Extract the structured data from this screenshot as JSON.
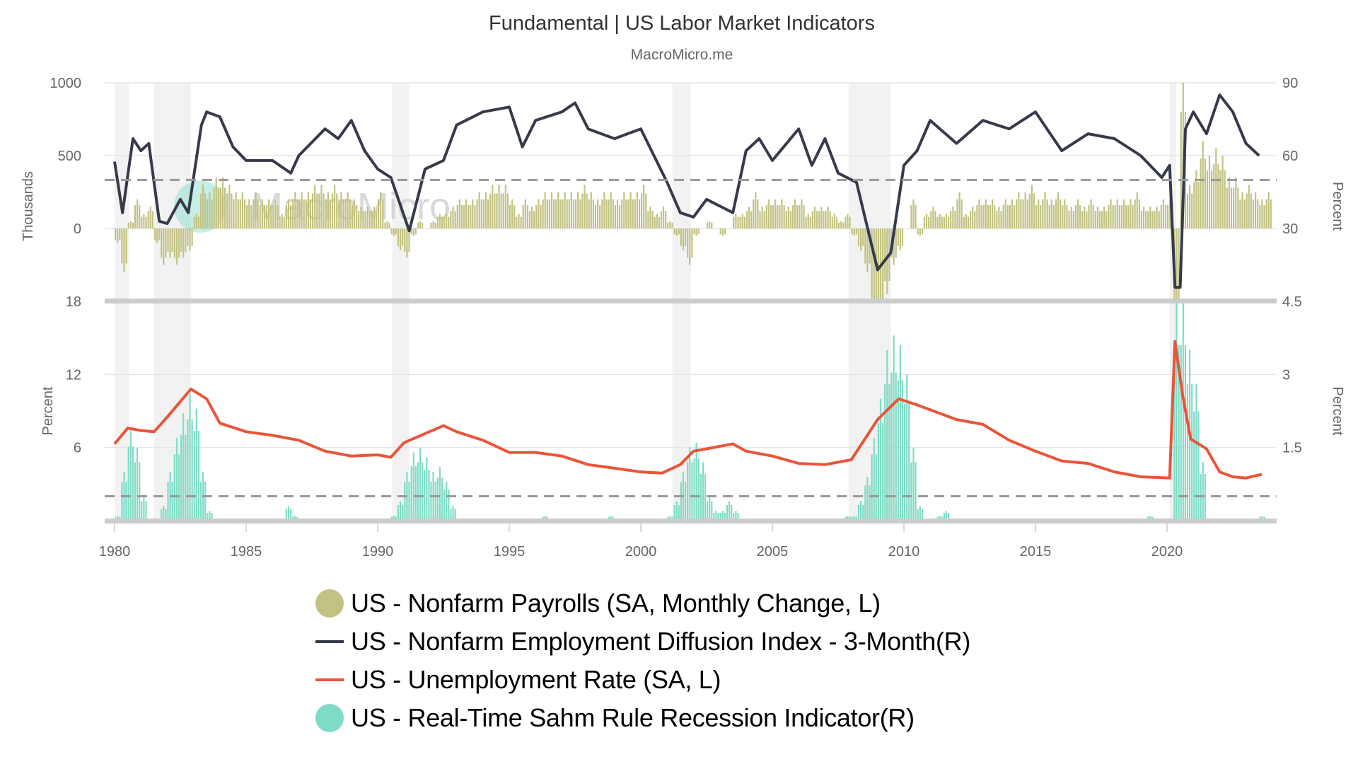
{
  "title": "Fundamental | US Labor Market Indicators",
  "subtitle": "MacroMicro.me",
  "watermark": "MacroMicro",
  "chart_data": {
    "type": "combo",
    "x_ticks": [
      "1980",
      "1985",
      "1990",
      "1995",
      "2000",
      "2005",
      "2010",
      "2015",
      "2020"
    ],
    "xlim": [
      1980,
      2023.8
    ],
    "grid": true,
    "legend_position": "bottom",
    "recessions": [
      [
        1980.0,
        1980.55
      ],
      [
        1981.5,
        1982.9
      ],
      [
        1990.55,
        1991.2
      ],
      [
        2001.2,
        2001.9
      ],
      [
        2007.9,
        2009.5
      ],
      [
        2020.1,
        2020.35
      ]
    ],
    "panels": [
      {
        "name": "upper",
        "left_axis": {
          "label": "Thousands",
          "ticks": [
            "1000",
            "500",
            "0"
          ],
          "ylim": [
            -500,
            1000
          ]
        },
        "right_axis": {
          "label": "Percent",
          "ticks": [
            "90",
            "60",
            "30"
          ],
          "ylim": [
            0,
            90
          ]
        },
        "reference_line_right": 50
      },
      {
        "name": "lower",
        "left_axis": {
          "label": "Percent",
          "ticks": [
            "18",
            "12",
            "6"
          ],
          "ylim": [
            0,
            18
          ]
        },
        "right_axis": {
          "label": "Percent",
          "ticks": [
            "4.5",
            "3",
            "1.5"
          ],
          "ylim": [
            0,
            4.5
          ]
        },
        "reference_line_right": 0.5
      }
    ],
    "series": [
      {
        "name": "US - Nonfarm Payrolls (SA, Monthly Change, L)",
        "type": "bar",
        "panel": "upper",
        "axis": "left",
        "color": "#c2c283",
        "x_start": 1980,
        "x_step": 0.25,
        "values": [
          -100,
          -300,
          50,
          200,
          100,
          150,
          -100,
          -250,
          -200,
          -250,
          -200,
          -150,
          100,
          300,
          250,
          350,
          350,
          300,
          250,
          250,
          200,
          250,
          200,
          200,
          200,
          100,
          200,
          250,
          250,
          250,
          300,
          300,
          250,
          300,
          250,
          250,
          200,
          150,
          150,
          150,
          250,
          50,
          -50,
          -150,
          -200,
          -50,
          50,
          0,
          50,
          100,
          100,
          150,
          200,
          200,
          200,
          250,
          250,
          300,
          300,
          300,
          200,
          100,
          200,
          150,
          200,
          250,
          250,
          250,
          250,
          250,
          250,
          300,
          250,
          200,
          250,
          250,
          200,
          250,
          250,
          250,
          300,
          150,
          100,
          150,
          50,
          -50,
          -150,
          -250,
          -50,
          0,
          50,
          0,
          -50,
          0,
          100,
          100,
          150,
          250,
          150,
          200,
          200,
          200,
          150,
          200,
          200,
          100,
          150,
          150,
          150,
          100,
          50,
          100,
          -50,
          -150,
          -300,
          -600,
          -700,
          -450,
          -250,
          -150,
          0,
          200,
          -50,
          100,
          150,
          100,
          100,
          150,
          250,
          100,
          150,
          200,
          200,
          200,
          150,
          200,
          200,
          250,
          250,
          300,
          200,
          250,
          200,
          250,
          200,
          150,
          200,
          150,
          200,
          150,
          150,
          200,
          200,
          200,
          200,
          250,
          150,
          150,
          150,
          200,
          200,
          -900,
          1000,
          300,
          400,
          600,
          500,
          550,
          500,
          350,
          350,
          250,
          300,
          250,
          200,
          250
        ]
      },
      {
        "name": "US - Nonfarm Employment Diffusion Index - 3-Month(R)",
        "type": "line",
        "panel": "upper",
        "axis": "right",
        "color": "#363a4a",
        "points": [
          [
            1980.0,
            57.5
          ],
          [
            1980.3,
            36.5
          ],
          [
            1980.7,
            67
          ],
          [
            1981.0,
            62
          ],
          [
            1981.3,
            65
          ],
          [
            1981.7,
            33
          ],
          [
            1982.0,
            32
          ],
          [
            1982.5,
            42
          ],
          [
            1982.8,
            36.5
          ],
          [
            1983.3,
            72.6
          ],
          [
            1983.5,
            78
          ],
          [
            1984.0,
            76
          ],
          [
            1984.5,
            63.6
          ],
          [
            1985.0,
            58
          ],
          [
            1986.0,
            58
          ],
          [
            1986.7,
            52.8
          ],
          [
            1987.0,
            60
          ],
          [
            1988.0,
            71
          ],
          [
            1988.5,
            67
          ],
          [
            1989.0,
            74.5
          ],
          [
            1989.5,
            62
          ],
          [
            1990.0,
            54.5
          ],
          [
            1990.5,
            51
          ],
          [
            1991.2,
            29
          ],
          [
            1991.8,
            54.5
          ],
          [
            1992.5,
            58
          ],
          [
            1993.0,
            72.6
          ],
          [
            1994.0,
            78
          ],
          [
            1995.0,
            80
          ],
          [
            1995.5,
            63.6
          ],
          [
            1996.0,
            74.5
          ],
          [
            1997.0,
            78
          ],
          [
            1997.5,
            81.7
          ],
          [
            1998.0,
            71
          ],
          [
            1999.0,
            67
          ],
          [
            2000.0,
            71
          ],
          [
            2000.5,
            60
          ],
          [
            2001.0,
            49
          ],
          [
            2001.5,
            36.5
          ],
          [
            2002.0,
            34.7
          ],
          [
            2002.5,
            42
          ],
          [
            2003.5,
            36.5
          ],
          [
            2004.0,
            62
          ],
          [
            2004.5,
            67
          ],
          [
            2005.0,
            58
          ],
          [
            2006.0,
            71
          ],
          [
            2006.5,
            56
          ],
          [
            2007.0,
            67
          ],
          [
            2007.5,
            52.8
          ],
          [
            2008.2,
            49
          ],
          [
            2009.0,
            13
          ],
          [
            2009.5,
            20
          ],
          [
            2010.0,
            56
          ],
          [
            2010.5,
            62
          ],
          [
            2011.0,
            74.5
          ],
          [
            2012.0,
            65
          ],
          [
            2013.0,
            74.5
          ],
          [
            2014.0,
            71
          ],
          [
            2015.0,
            78
          ],
          [
            2016.0,
            62
          ],
          [
            2017.0,
            69
          ],
          [
            2018.0,
            67
          ],
          [
            2019.0,
            60
          ],
          [
            2019.8,
            51
          ],
          [
            2020.1,
            56
          ],
          [
            2020.3,
            5.8
          ],
          [
            2020.5,
            5.8
          ],
          [
            2020.7,
            71
          ],
          [
            2021.0,
            78
          ],
          [
            2021.5,
            69
          ],
          [
            2022.0,
            85
          ],
          [
            2022.5,
            78
          ],
          [
            2023.0,
            65
          ],
          [
            2023.5,
            60
          ]
        ]
      },
      {
        "name": "US - Unemployment Rate (SA, L)",
        "type": "line",
        "panel": "lower",
        "axis": "left",
        "color": "#e9553a",
        "points": [
          [
            1980.0,
            6.3
          ],
          [
            1980.5,
            7.6
          ],
          [
            1981.0,
            7.4
          ],
          [
            1981.5,
            7.3
          ],
          [
            1982.0,
            8.5
          ],
          [
            1982.9,
            10.8
          ],
          [
            1983.5,
            10.0
          ],
          [
            1984.0,
            8.0
          ],
          [
            1985.0,
            7.3
          ],
          [
            1986.0,
            7.0
          ],
          [
            1987.0,
            6.6
          ],
          [
            1988.0,
            5.7
          ],
          [
            1989.0,
            5.3
          ],
          [
            1990.0,
            5.4
          ],
          [
            1990.5,
            5.2
          ],
          [
            1991.0,
            6.4
          ],
          [
            1992.5,
            7.8
          ],
          [
            1993.0,
            7.3
          ],
          [
            1994.0,
            6.6
          ],
          [
            1995.0,
            5.6
          ],
          [
            1996.0,
            5.6
          ],
          [
            1997.0,
            5.3
          ],
          [
            1998.0,
            4.6
          ],
          [
            1999.0,
            4.3
          ],
          [
            2000.0,
            4.0
          ],
          [
            2000.8,
            3.9
          ],
          [
            2001.5,
            4.6
          ],
          [
            2002.0,
            5.7
          ],
          [
            2003.5,
            6.3
          ],
          [
            2004.0,
            5.7
          ],
          [
            2005.0,
            5.3
          ],
          [
            2006.0,
            4.7
          ],
          [
            2007.0,
            4.6
          ],
          [
            2008.0,
            5.0
          ],
          [
            2009.0,
            8.3
          ],
          [
            2009.8,
            10.0
          ],
          [
            2010.5,
            9.5
          ],
          [
            2011.0,
            9.1
          ],
          [
            2012.0,
            8.3
          ],
          [
            2013.0,
            7.9
          ],
          [
            2014.0,
            6.6
          ],
          [
            2015.0,
            5.7
          ],
          [
            2016.0,
            4.9
          ],
          [
            2017.0,
            4.7
          ],
          [
            2018.0,
            4.0
          ],
          [
            2019.0,
            3.6
          ],
          [
            2020.1,
            3.5
          ],
          [
            2020.3,
            14.7
          ],
          [
            2020.6,
            10.2
          ],
          [
            2020.9,
            6.7
          ],
          [
            2021.5,
            5.9
          ],
          [
            2022.0,
            4.0
          ],
          [
            2022.5,
            3.6
          ],
          [
            2023.0,
            3.5
          ],
          [
            2023.6,
            3.8
          ]
        ]
      },
      {
        "name": "US - Real-Time Sahm Rule Recession Indicator(R)",
        "type": "bar",
        "panel": "lower",
        "axis": "right",
        "color": "#7fdbc5",
        "x_start": 1980,
        "x_step": 0.25,
        "values": [
          0.1,
          1.0,
          1.9,
          1.5,
          0.5,
          0,
          0,
          0.3,
          1.0,
          1.7,
          2.2,
          2.6,
          2.3,
          1.0,
          0.2,
          0,
          0,
          0,
          0,
          0,
          0,
          0,
          0,
          0,
          0,
          0,
          0.3,
          0.1,
          0,
          0,
          0,
          0,
          0,
          0,
          0,
          0,
          0,
          0,
          0,
          0,
          0,
          0.05,
          0.1,
          0.4,
          1.0,
          1.4,
          1.5,
          1.3,
          1.0,
          1.1,
          0.8,
          0.3,
          0,
          0,
          0,
          0,
          0,
          0,
          0,
          0,
          0,
          0,
          0,
          0,
          0,
          0.1,
          0,
          0,
          0,
          0,
          0,
          0,
          0,
          0,
          0,
          0.1,
          0,
          0,
          0,
          0,
          0,
          0,
          0,
          0.05,
          0.1,
          0.4,
          1.0,
          1.5,
          1.6,
          1.2,
          0.5,
          0.2,
          0.2,
          0.4,
          0.2,
          0,
          0,
          0,
          0,
          0,
          0,
          0,
          0,
          0,
          0,
          0,
          0,
          0,
          0,
          0,
          0,
          0.1,
          0.1,
          0.4,
          0.9,
          1.7,
          2.5,
          3.5,
          3.8,
          3.6,
          3.0,
          1.5,
          0.3,
          0,
          0,
          0.1,
          0.2,
          0,
          0,
          0,
          0,
          0,
          0,
          0,
          0,
          0,
          0,
          0,
          0,
          0,
          0,
          0,
          0,
          0,
          0,
          0.05,
          0,
          0,
          0,
          0,
          0,
          0,
          0,
          0,
          0,
          0,
          0,
          0.1,
          0,
          0,
          0.05,
          4.5,
          4.5,
          3.5,
          2.8,
          1.2,
          0,
          0,
          0,
          0,
          0,
          0,
          0,
          0,
          0.1,
          0
        ]
      }
    ]
  }
}
